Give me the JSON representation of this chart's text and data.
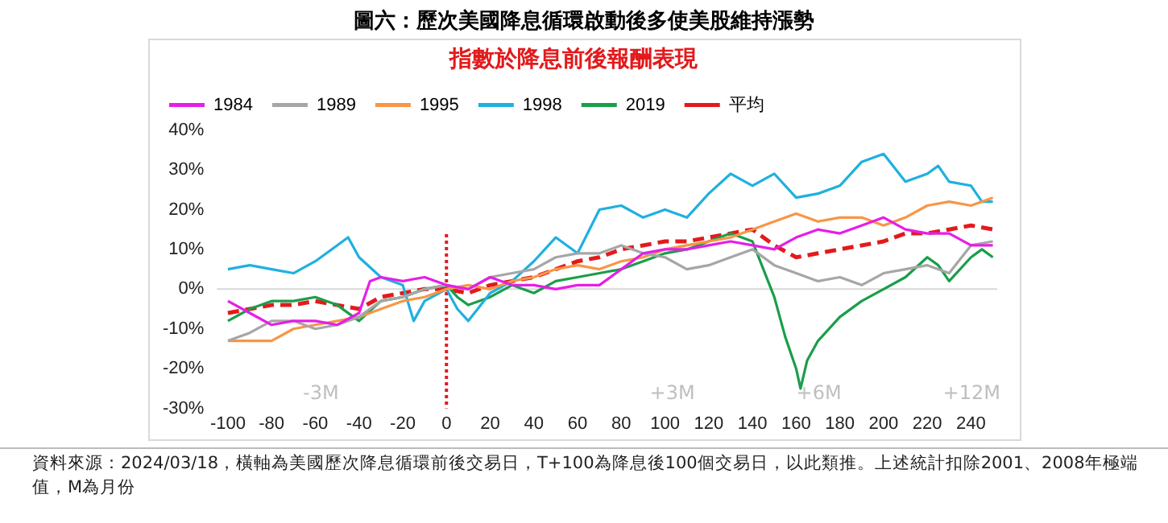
{
  "chart_data": {
    "type": "line",
    "title": "圖六：歷次美國降息循環啟動後多使美股維持漲勢",
    "subtitle": "指數於降息前後報酬表現",
    "annotations": [
      "-3M",
      "+3M",
      "+6M",
      "+12M",
      "資料來源：2024/03/18，橫軸為美國歷次降息循環前後交易日，T+100為降息後100個交易日，以此類推。上述統計扣除2001、2008年極端值，M為月份"
    ],
    "xlim": [
      -105,
      252
    ],
    "xticks": [
      -100,
      -80,
      -60,
      -40,
      -20,
      0,
      20,
      40,
      60,
      80,
      100,
      120,
      140,
      160,
      180,
      200,
      220,
      240
    ],
    "ylim": [
      -30,
      40
    ],
    "yticks": [
      {
        "value": -30,
        "label": "-30%"
      },
      {
        "value": -20,
        "label": "-20%"
      },
      {
        "value": -10,
        "label": "-10%"
      },
      {
        "value": 0,
        "label": "0%"
      },
      {
        "value": 10,
        "label": "10%"
      },
      {
        "value": 20,
        "label": "20%"
      },
      {
        "value": 30,
        "label": "30%"
      },
      {
        "value": 40,
        "label": "40%"
      }
    ],
    "grid": false,
    "legend": "top left",
    "marker": "none",
    "ref_lines": [
      {
        "axis": "y",
        "value": 0,
        "color": "#d9d9d9",
        "line_style": "solid"
      },
      {
        "axis": "x",
        "value": 0,
        "color": "#e31a1c",
        "line_style": "dotted"
      }
    ],
    "series": [
      {
        "name": "1984",
        "color": "#e61ee6",
        "x": [
          -100,
          -90,
          -80,
          -70,
          -60,
          -50,
          -40,
          -35,
          -30,
          -20,
          -10,
          0,
          10,
          20,
          30,
          40,
          50,
          60,
          70,
          80,
          90,
          100,
          110,
          120,
          130,
          140,
          150,
          160,
          170,
          180,
          190,
          200,
          210,
          220,
          230,
          240,
          250
        ],
        "values": [
          -3,
          -6,
          -9,
          -8,
          -8,
          -9,
          -6,
          2,
          3,
          2,
          3,
          1,
          0,
          3,
          1,
          1,
          0,
          1,
          1,
          5,
          9,
          10,
          10,
          11,
          12,
          11,
          10,
          13,
          15,
          14,
          16,
          18,
          15,
          14,
          14,
          11,
          11
        ]
      },
      {
        "name": "1989",
        "color": "#a6a6a6",
        "x": [
          -100,
          -90,
          -80,
          -70,
          -60,
          -50,
          -40,
          -30,
          -20,
          -10,
          0,
          10,
          20,
          30,
          40,
          50,
          60,
          70,
          80,
          90,
          100,
          110,
          120,
          130,
          140,
          150,
          160,
          170,
          180,
          190,
          200,
          210,
          220,
          230,
          240,
          250
        ],
        "values": [
          -13,
          -11,
          -8,
          -8,
          -10,
          -9,
          -7,
          -3,
          -2,
          0,
          1,
          0,
          3,
          4,
          5,
          8,
          9,
          9,
          11,
          9,
          8,
          5,
          6,
          8,
          10,
          6,
          4,
          2,
          3,
          1,
          4,
          5,
          6,
          4,
          11,
          12
        ]
      },
      {
        "name": "1995",
        "color": "#f79646",
        "x": [
          -100,
          -90,
          -80,
          -70,
          -60,
          -50,
          -40,
          -30,
          -20,
          -10,
          0,
          10,
          20,
          30,
          40,
          50,
          60,
          70,
          80,
          90,
          100,
          110,
          120,
          130,
          140,
          150,
          160,
          170,
          180,
          190,
          200,
          210,
          220,
          230,
          240,
          250
        ],
        "values": [
          -13,
          -13,
          -13,
          -10,
          -9,
          -8,
          -7,
          -5,
          -3,
          -2,
          0,
          1,
          0,
          2,
          3,
          5,
          6,
          5,
          7,
          8,
          10,
          11,
          12,
          13,
          15,
          17,
          19,
          17,
          18,
          18,
          16,
          18,
          21,
          22,
          21,
          23
        ]
      },
      {
        "name": "1998",
        "color": "#1fb0e0",
        "x": [
          -100,
          -90,
          -80,
          -70,
          -60,
          -50,
          -45,
          -40,
          -30,
          -20,
          -15,
          -10,
          0,
          5,
          10,
          20,
          30,
          40,
          50,
          60,
          70,
          80,
          90,
          100,
          110,
          120,
          130,
          140,
          150,
          160,
          170,
          180,
          190,
          200,
          210,
          220,
          225,
          230,
          240,
          245,
          250
        ],
        "values": [
          5,
          6,
          5,
          4,
          7,
          11,
          13,
          8,
          3,
          1,
          -8,
          -3,
          0,
          -5,
          -8,
          -1,
          2,
          7,
          13,
          9,
          20,
          21,
          18,
          20,
          18,
          24,
          29,
          26,
          29,
          23,
          24,
          26,
          32,
          34,
          27,
          29,
          31,
          27,
          26,
          22,
          22
        ]
      },
      {
        "name": "2019",
        "color": "#1a9e4a",
        "x": [
          -100,
          -90,
          -80,
          -70,
          -60,
          -50,
          -40,
          -30,
          -20,
          -10,
          0,
          5,
          10,
          20,
          30,
          40,
          50,
          60,
          70,
          80,
          90,
          100,
          110,
          120,
          130,
          140,
          145,
          150,
          155,
          160,
          162,
          165,
          170,
          180,
          190,
          200,
          210,
          220,
          225,
          230,
          240,
          245,
          250
        ],
        "values": [
          -8,
          -5,
          -3,
          -3,
          -2,
          -4,
          -8,
          -3,
          -2,
          0,
          1,
          -2,
          -4,
          -2,
          1,
          -1,
          2,
          3,
          4,
          5,
          7,
          9,
          10,
          12,
          14,
          12,
          5,
          -2,
          -12,
          -20,
          -25,
          -18,
          -13,
          -7,
          -3,
          0,
          3,
          8,
          6,
          2,
          8,
          10,
          8
        ]
      },
      {
        "name": "平均",
        "color": "#e31a1c",
        "line_style": "dashed",
        "x": [
          -100,
          -90,
          -80,
          -70,
          -60,
          -50,
          -40,
          -30,
          -20,
          -10,
          0,
          10,
          20,
          30,
          40,
          50,
          60,
          70,
          80,
          90,
          100,
          110,
          120,
          130,
          140,
          150,
          160,
          170,
          180,
          190,
          200,
          210,
          220,
          230,
          240,
          250
        ],
        "values": [
          -6,
          -5,
          -4,
          -4,
          -3,
          -4,
          -5,
          -2,
          -1,
          0,
          0,
          -1,
          1,
          2,
          3,
          5,
          7,
          8,
          10,
          11,
          12,
          12,
          13,
          14,
          15,
          11,
          8,
          9,
          10,
          11,
          12,
          14,
          14,
          15,
          16,
          15
        ]
      }
    ]
  }
}
